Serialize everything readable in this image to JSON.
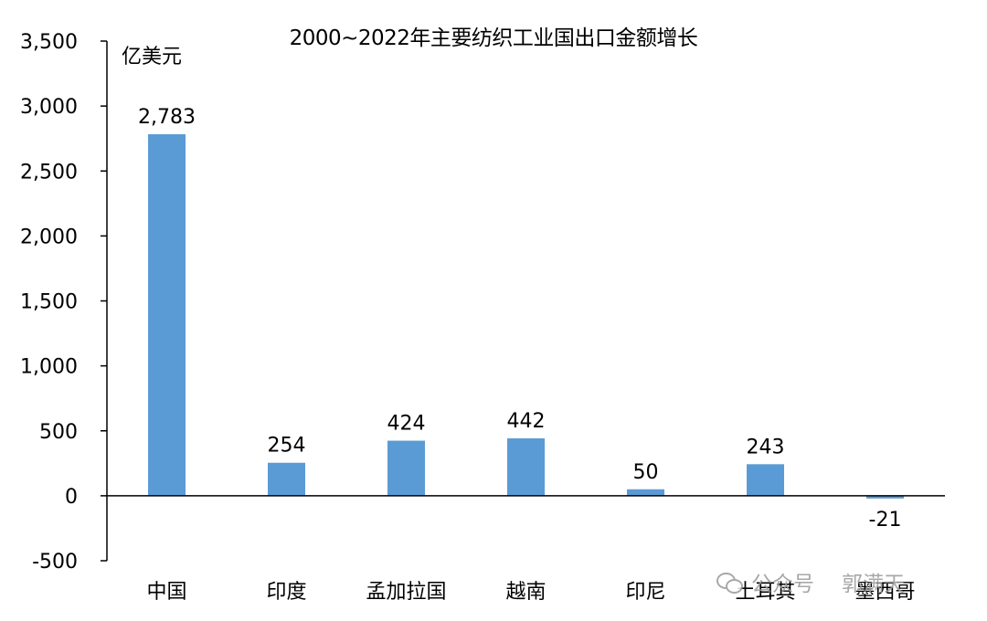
{
  "title": "2000~2022年主要纺织工业国出口金额增长",
  "unit_label": "亿美元",
  "chart_data": {
    "type": "bar",
    "title": "2000~2022年主要纺织工业国出口金额增长",
    "xlabel": "",
    "ylabel": "亿美元",
    "categories": [
      "中国",
      "印度",
      "孟加拉国",
      "越南",
      "印尼",
      "土耳其",
      "墨西哥"
    ],
    "values": [
      2783,
      254,
      424,
      442,
      50,
      243,
      -21
    ],
    "data_labels": [
      "2,783",
      "254",
      "424",
      "442",
      "50",
      "243",
      "-21"
    ],
    "ylim": [
      -500,
      3500
    ],
    "yticks": [
      -500,
      0,
      500,
      1000,
      1500,
      2000,
      2500,
      3000,
      3500
    ],
    "ytick_labels": [
      "-500",
      "0",
      "500",
      "1,000",
      "1,500",
      "2,000",
      "2,500",
      "3,000",
      "3,500"
    ],
    "bar_color": "#5b9bd5",
    "grid": false,
    "legend": "none"
  },
  "watermark": {
    "platform": "公众号",
    "author": "郭满天"
  }
}
